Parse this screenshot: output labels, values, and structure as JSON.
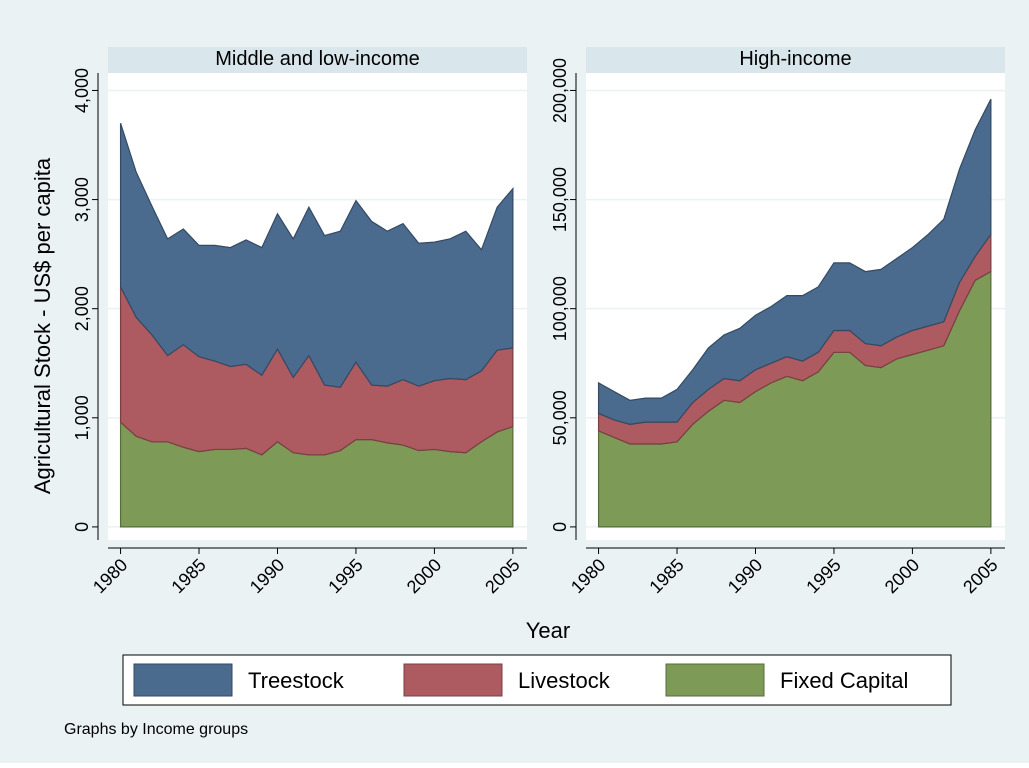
{
  "y_label": "Agricultural Stock - US$ per capita",
  "x_label": "Year",
  "note": "Graphs by Income groups",
  "chart_data": [
    {
      "type": "area",
      "stacked": true,
      "title": "Middle and low-income",
      "x": [
        1980,
        1981,
        1982,
        1983,
        1984,
        1985,
        1986,
        1987,
        1988,
        1989,
        1990,
        1991,
        1992,
        1993,
        1994,
        1995,
        1996,
        1997,
        1998,
        1999,
        2000,
        2001,
        2002,
        2003,
        2004,
        2005
      ],
      "series": [
        {
          "name": "Fixed Capital",
          "color": "#7d9a57",
          "values": [
            960,
            830,
            780,
            780,
            730,
            690,
            710,
            710,
            720,
            660,
            780,
            680,
            660,
            660,
            700,
            800,
            800,
            770,
            750,
            700,
            710,
            690,
            680,
            780,
            870,
            920
          ]
        },
        {
          "name": "Livestock",
          "color": "#ad5a60",
          "values": [
            1240,
            1090,
            980,
            790,
            940,
            870,
            810,
            760,
            770,
            730,
            850,
            690,
            910,
            640,
            580,
            710,
            500,
            520,
            600,
            590,
            630,
            670,
            670,
            650,
            750,
            720
          ]
        },
        {
          "name": "Treestock",
          "color": "#4a6a8e",
          "values": [
            1500,
            1330,
            1180,
            1070,
            1060,
            1020,
            1060,
            1090,
            1140,
            1170,
            1240,
            1270,
            1360,
            1370,
            1430,
            1480,
            1500,
            1420,
            1430,
            1310,
            1270,
            1280,
            1360,
            1110,
            1310,
            1460
          ]
        }
      ],
      "xlim": [
        1979.2,
        2005.9
      ],
      "xticks": [
        1980,
        1985,
        1990,
        1995,
        2000,
        2005
      ],
      "ylim": [
        -120,
        4160
      ],
      "yticks": [
        0,
        {
          "value": 1000,
          "label": "1,000"
        },
        {
          "value": 2000,
          "label": "2,000"
        },
        {
          "value": 3000,
          "label": "3,000"
        },
        {
          "value": 4000,
          "label": "4,000"
        }
      ],
      "grid": true
    },
    {
      "type": "area",
      "stacked": true,
      "title": "High-income",
      "x": [
        1980,
        1981,
        1982,
        1983,
        1984,
        1985,
        1986,
        1987,
        1988,
        1989,
        1990,
        1991,
        1992,
        1993,
        1994,
        1995,
        1996,
        1997,
        1998,
        1999,
        2000,
        2001,
        2002,
        2003,
        2004,
        2005
      ],
      "series": [
        {
          "name": "Fixed Capital",
          "color": "#7d9a57",
          "values": [
            44000,
            41000,
            38000,
            38000,
            38000,
            39000,
            47000,
            53000,
            58000,
            57000,
            62000,
            66000,
            69000,
            67000,
            71000,
            80000,
            80000,
            74000,
            73000,
            77000,
            79000,
            81000,
            83000,
            99000,
            113000,
            117000
          ]
        },
        {
          "name": "Livestock",
          "color": "#ad5a60",
          "values": [
            8000,
            8000,
            9000,
            10000,
            10000,
            9000,
            10000,
            10000,
            10000,
            10000,
            10000,
            9000,
            9000,
            9000,
            9000,
            10000,
            10000,
            10000,
            10000,
            10000,
            11000,
            11000,
            11000,
            13000,
            11000,
            17000
          ]
        },
        {
          "name": "Treestock",
          "color": "#4a6a8e",
          "values": [
            14000,
            13000,
            11000,
            11000,
            11000,
            15000,
            15000,
            19000,
            20000,
            24000,
            25000,
            26000,
            28000,
            30000,
            30000,
            31000,
            31000,
            33000,
            35000,
            36000,
            38000,
            42000,
            47000,
            52000,
            58000,
            62000
          ]
        }
      ],
      "xlim": [
        1979.2,
        2005.9
      ],
      "xticks": [
        1980,
        1985,
        1990,
        1995,
        2000,
        2005
      ],
      "ylim": [
        -6000,
        208000
      ],
      "yticks": [
        0,
        {
          "value": 50000,
          "label": "50,000"
        },
        {
          "value": 100000,
          "label": "100,000"
        },
        {
          "value": 150000,
          "label": "150,000"
        },
        {
          "value": 200000,
          "label": "200,000"
        }
      ],
      "grid": true
    }
  ]
}
